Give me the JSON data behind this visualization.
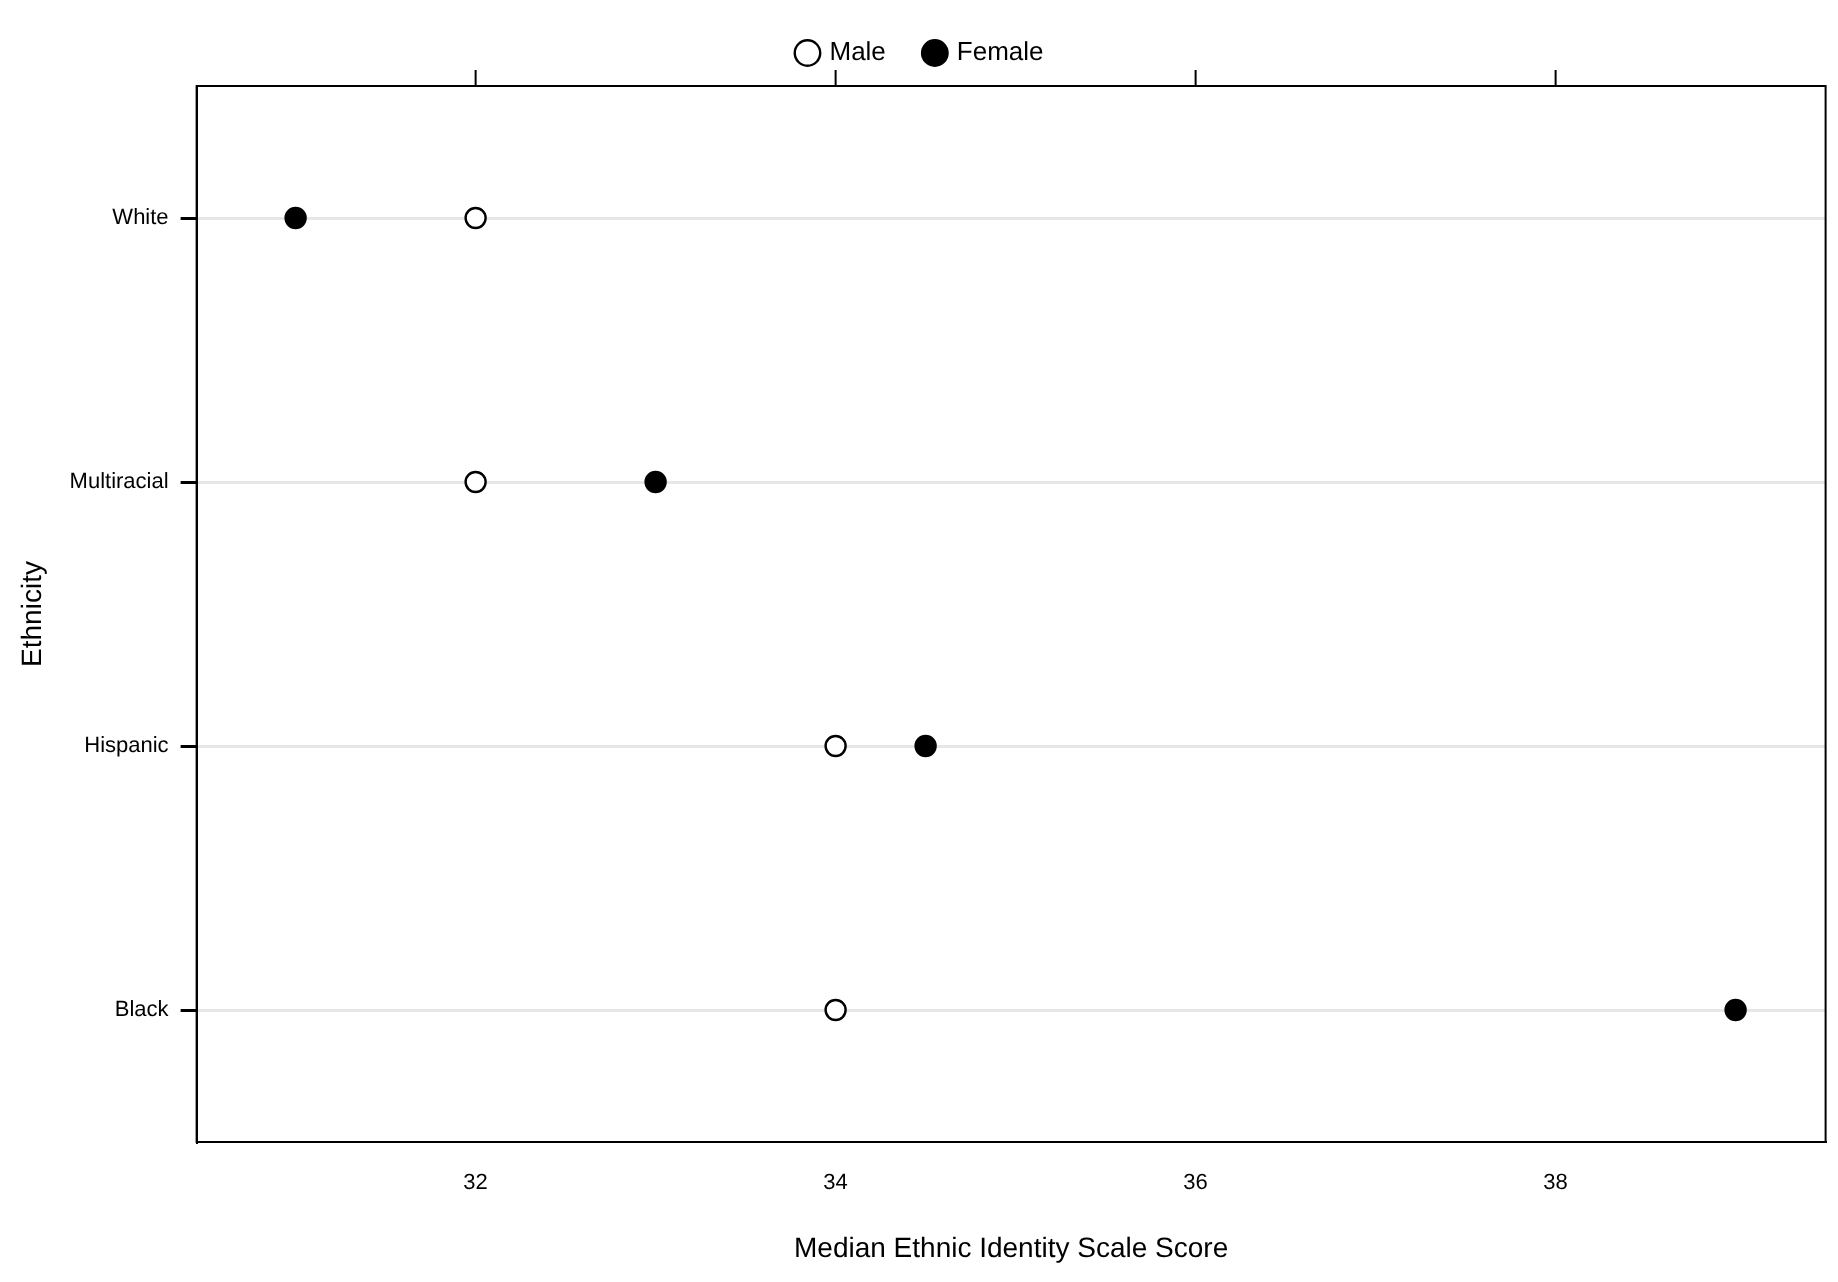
{
  "chart_data": {
    "type": "scatter",
    "orientation": "horizontal",
    "xlabel": "Median Ethnic Identity Scale Score",
    "ylabel": "Ethnicity",
    "categories": [
      "White",
      "Multiracial",
      "Hispanic",
      "Black"
    ],
    "series": [
      {
        "name": "Male",
        "color": "#ffffff",
        "values": [
          32,
          32,
          34,
          34
        ]
      },
      {
        "name": "Female",
        "color": "#000000",
        "values": [
          31,
          33,
          34.5,
          39
        ]
      }
    ],
    "xlim": [
      30.45,
      39.5
    ],
    "xticks": [
      32,
      34,
      36,
      38
    ],
    "grid": "y",
    "legend": "top",
    "marker": "circle"
  }
}
